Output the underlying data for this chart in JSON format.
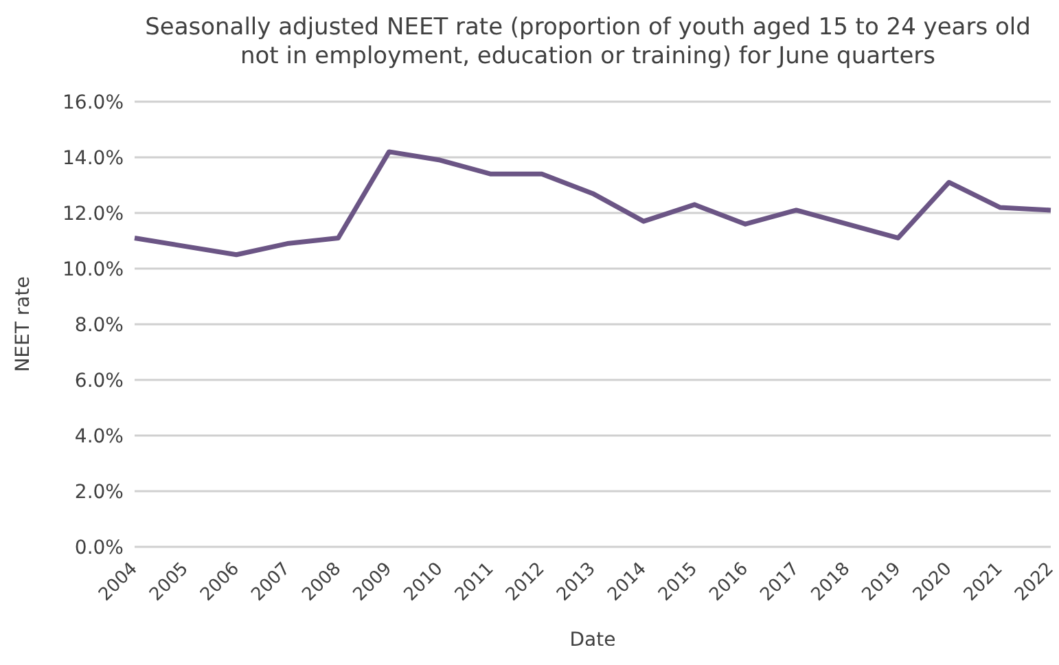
{
  "chart_data": {
    "type": "line",
    "title": "Seasonally adjusted NEET rate (proportion of youth aged 15 to 24 years old not in employment, education or training) for June quarters",
    "xlabel": "Date",
    "ylabel": "NEET rate",
    "categories": [
      "2004",
      "2005",
      "2006",
      "2007",
      "2008",
      "2009",
      "2010",
      "2011",
      "2012",
      "2013",
      "2014",
      "2015",
      "2016",
      "2017",
      "2018",
      "2019",
      "2020",
      "2021",
      "2022"
    ],
    "series": [
      {
        "color": "#6b5585",
        "values": [
          11.1,
          10.8,
          10.5,
          10.9,
          11.1,
          14.2,
          13.9,
          13.4,
          13.4,
          12.7,
          11.7,
          12.3,
          11.6,
          12.1,
          11.6,
          11.1,
          13.1,
          12.2,
          12.1
        ]
      }
    ],
    "ylim": [
      0,
      16
    ],
    "yticks": [
      {
        "value": 0,
        "label": "0.0%"
      },
      {
        "value": 2,
        "label": "2.0%"
      },
      {
        "value": 4,
        "label": "4.0%"
      },
      {
        "value": 6,
        "label": "6.0%"
      },
      {
        "value": 8,
        "label": "8.0%"
      },
      {
        "value": 10,
        "label": "10.0%"
      },
      {
        "value": 12,
        "label": "12.0%"
      },
      {
        "value": 14,
        "label": "14.0%"
      },
      {
        "value": 16,
        "label": "16.0%"
      }
    ],
    "grid": "y",
    "marker": "none",
    "line_style": "solid",
    "legend": false
  }
}
